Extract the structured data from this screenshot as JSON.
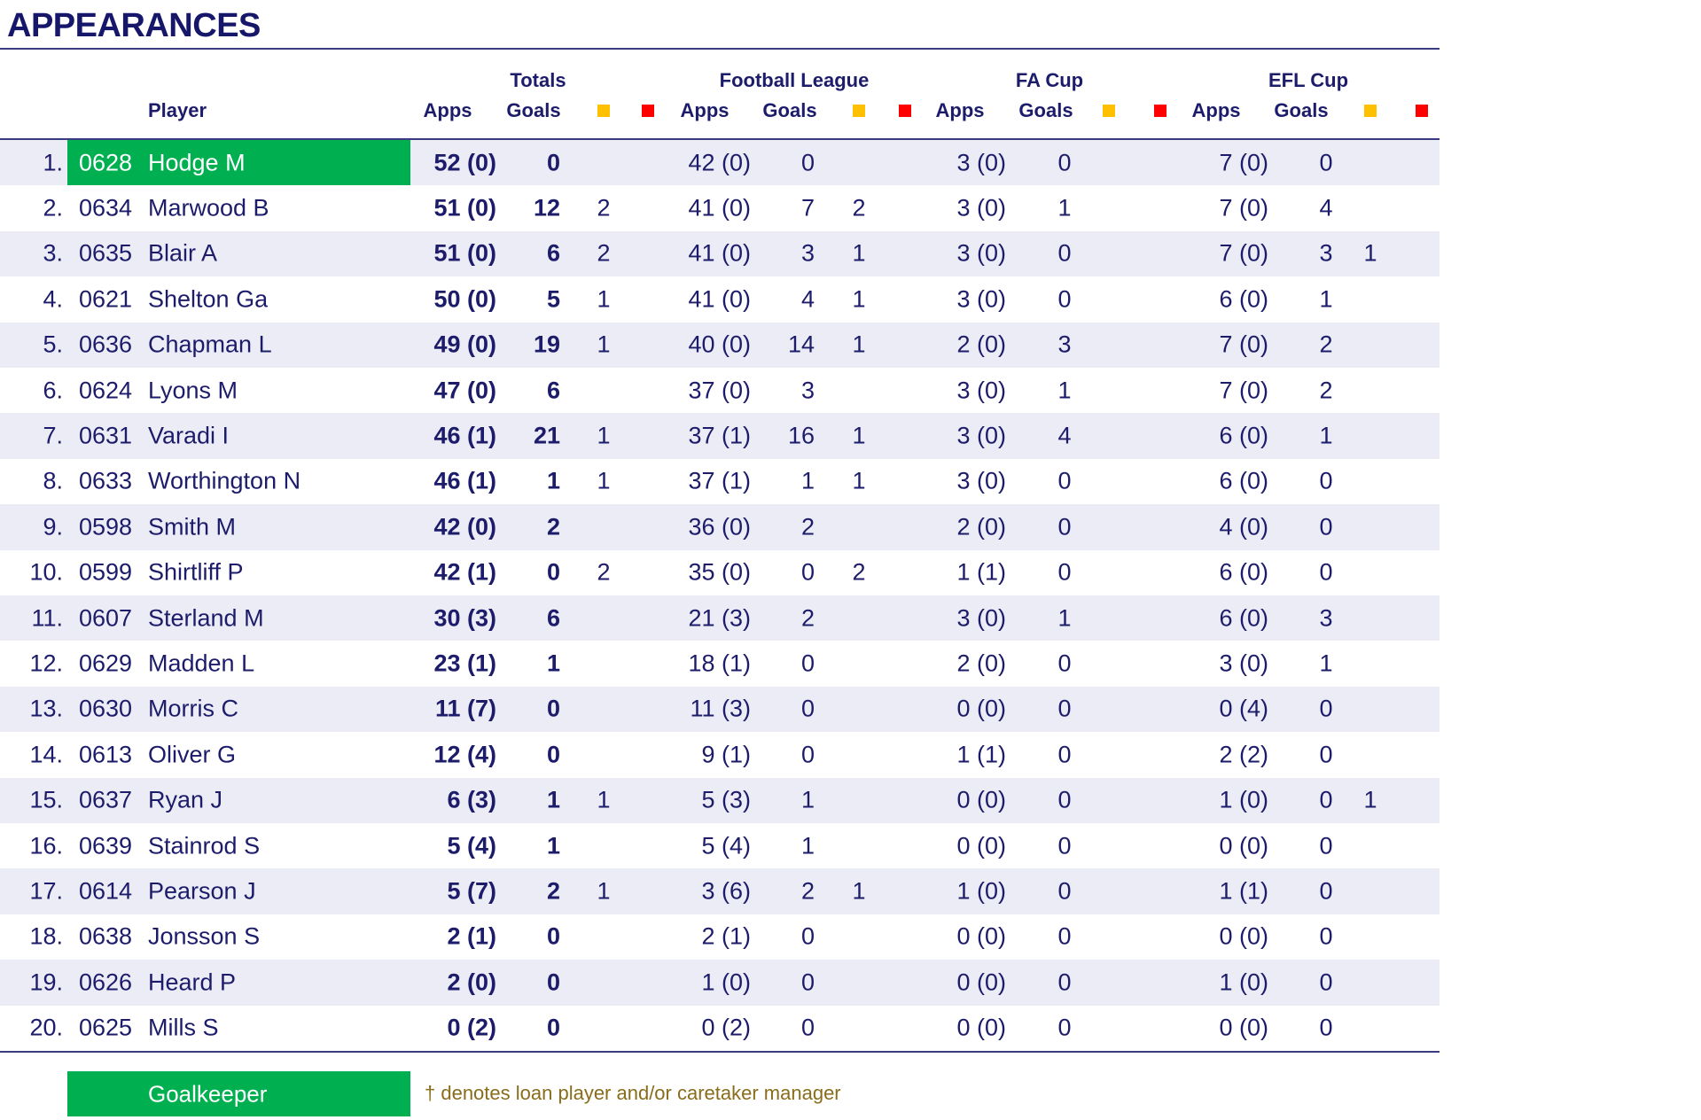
{
  "title": "APPEARANCES",
  "colors": {
    "goalkeeper": "#00b050",
    "yellow_card": "#ffc000",
    "red_card": "#ff0000",
    "text": "#1c1c6b",
    "stripe": "#ececf6"
  },
  "header": {
    "player": "Player",
    "groups": [
      "Totals",
      "Football League",
      "FA Cup",
      "EFL Cup"
    ],
    "apps": "Apps",
    "goals": "Goals",
    "yellow_icon": "yellow-card-icon",
    "red_icon": "red-card-icon"
  },
  "rows": [
    {
      "rank": "1.",
      "num": "0628",
      "name": "Hodge M",
      "gk": true,
      "tot": [
        "52 (0)",
        "0",
        "",
        ""
      ],
      "fl": [
        "42 (0)",
        "0",
        "",
        ""
      ],
      "fa": [
        "3 (0)",
        "0",
        "",
        ""
      ],
      "efl": [
        "7 (0)",
        "0",
        "",
        ""
      ]
    },
    {
      "rank": "2.",
      "num": "0634",
      "name": "Marwood B",
      "gk": false,
      "tot": [
        "51 (0)",
        "12",
        "2",
        ""
      ],
      "fl": [
        "41 (0)",
        "7",
        "2",
        ""
      ],
      "fa": [
        "3 (0)",
        "1",
        "",
        ""
      ],
      "efl": [
        "7 (0)",
        "4",
        "",
        ""
      ]
    },
    {
      "rank": "3.",
      "num": "0635",
      "name": "Blair A",
      "gk": false,
      "tot": [
        "51 (0)",
        "6",
        "2",
        ""
      ],
      "fl": [
        "41 (0)",
        "3",
        "1",
        ""
      ],
      "fa": [
        "3 (0)",
        "0",
        "",
        ""
      ],
      "efl": [
        "7 (0)",
        "3",
        "1",
        ""
      ]
    },
    {
      "rank": "4.",
      "num": "0621",
      "name": "Shelton Ga",
      "gk": false,
      "tot": [
        "50 (0)",
        "5",
        "1",
        ""
      ],
      "fl": [
        "41 (0)",
        "4",
        "1",
        ""
      ],
      "fa": [
        "3 (0)",
        "0",
        "",
        ""
      ],
      "efl": [
        "6 (0)",
        "1",
        "",
        ""
      ]
    },
    {
      "rank": "5.",
      "num": "0636",
      "name": "Chapman L",
      "gk": false,
      "tot": [
        "49 (0)",
        "19",
        "1",
        ""
      ],
      "fl": [
        "40 (0)",
        "14",
        "1",
        ""
      ],
      "fa": [
        "2 (0)",
        "3",
        "",
        ""
      ],
      "efl": [
        "7 (0)",
        "2",
        "",
        ""
      ]
    },
    {
      "rank": "6.",
      "num": "0624",
      "name": "Lyons M",
      "gk": false,
      "tot": [
        "47 (0)",
        "6",
        "",
        ""
      ],
      "fl": [
        "37 (0)",
        "3",
        "",
        ""
      ],
      "fa": [
        "3 (0)",
        "1",
        "",
        ""
      ],
      "efl": [
        "7 (0)",
        "2",
        "",
        ""
      ]
    },
    {
      "rank": "7.",
      "num": "0631",
      "name": "Varadi I",
      "gk": false,
      "tot": [
        "46 (1)",
        "21",
        "1",
        ""
      ],
      "fl": [
        "37 (1)",
        "16",
        "1",
        ""
      ],
      "fa": [
        "3 (0)",
        "4",
        "",
        ""
      ],
      "efl": [
        "6 (0)",
        "1",
        "",
        ""
      ]
    },
    {
      "rank": "8.",
      "num": "0633",
      "name": "Worthington N",
      "gk": false,
      "tot": [
        "46 (1)",
        "1",
        "1",
        ""
      ],
      "fl": [
        "37 (1)",
        "1",
        "1",
        ""
      ],
      "fa": [
        "3 (0)",
        "0",
        "",
        ""
      ],
      "efl": [
        "6 (0)",
        "0",
        "",
        ""
      ]
    },
    {
      "rank": "9.",
      "num": "0598",
      "name": "Smith M",
      "gk": false,
      "tot": [
        "42 (0)",
        "2",
        "",
        ""
      ],
      "fl": [
        "36 (0)",
        "2",
        "",
        ""
      ],
      "fa": [
        "2 (0)",
        "0",
        "",
        ""
      ],
      "efl": [
        "4 (0)",
        "0",
        "",
        ""
      ]
    },
    {
      "rank": "10.",
      "num": "0599",
      "name": "Shirtliff P",
      "gk": false,
      "tot": [
        "42 (1)",
        "0",
        "2",
        ""
      ],
      "fl": [
        "35 (0)",
        "0",
        "2",
        ""
      ],
      "fa": [
        "1 (1)",
        "0",
        "",
        ""
      ],
      "efl": [
        "6 (0)",
        "0",
        "",
        ""
      ]
    },
    {
      "rank": "11.",
      "num": "0607",
      "name": "Sterland M",
      "gk": false,
      "tot": [
        "30 (3)",
        "6",
        "",
        ""
      ],
      "fl": [
        "21 (3)",
        "2",
        "",
        ""
      ],
      "fa": [
        "3 (0)",
        "1",
        "",
        ""
      ],
      "efl": [
        "6 (0)",
        "3",
        "",
        ""
      ]
    },
    {
      "rank": "12.",
      "num": "0629",
      "name": "Madden L",
      "gk": false,
      "tot": [
        "23 (1)",
        "1",
        "",
        ""
      ],
      "fl": [
        "18 (1)",
        "0",
        "",
        ""
      ],
      "fa": [
        "2 (0)",
        "0",
        "",
        ""
      ],
      "efl": [
        "3 (0)",
        "1",
        "",
        ""
      ]
    },
    {
      "rank": "13.",
      "num": "0630",
      "name": "Morris C",
      "gk": false,
      "tot": [
        "11 (7)",
        "0",
        "",
        ""
      ],
      "fl": [
        "11 (3)",
        "0",
        "",
        ""
      ],
      "fa": [
        "0 (0)",
        "0",
        "",
        ""
      ],
      "efl": [
        "0 (4)",
        "0",
        "",
        ""
      ]
    },
    {
      "rank": "14.",
      "num": "0613",
      "name": "Oliver G",
      "gk": false,
      "tot": [
        "12 (4)",
        "0",
        "",
        ""
      ],
      "fl": [
        "9 (1)",
        "0",
        "",
        ""
      ],
      "fa": [
        "1 (1)",
        "0",
        "",
        ""
      ],
      "efl": [
        "2 (2)",
        "0",
        "",
        ""
      ]
    },
    {
      "rank": "15.",
      "num": "0637",
      "name": "Ryan J",
      "gk": false,
      "tot": [
        "6 (3)",
        "1",
        "1",
        ""
      ],
      "fl": [
        "5 (3)",
        "1",
        "",
        ""
      ],
      "fa": [
        "0 (0)",
        "0",
        "",
        ""
      ],
      "efl": [
        "1 (0)",
        "0",
        "1",
        ""
      ]
    },
    {
      "rank": "16.",
      "num": "0639",
      "name": "Stainrod S",
      "gk": false,
      "tot": [
        "5 (4)",
        "1",
        "",
        ""
      ],
      "fl": [
        "5 (4)",
        "1",
        "",
        ""
      ],
      "fa": [
        "0 (0)",
        "0",
        "",
        ""
      ],
      "efl": [
        "0 (0)",
        "0",
        "",
        ""
      ]
    },
    {
      "rank": "17.",
      "num": "0614",
      "name": "Pearson J",
      "gk": false,
      "tot": [
        "5 (7)",
        "2",
        "1",
        ""
      ],
      "fl": [
        "3 (6)",
        "2",
        "1",
        ""
      ],
      "fa": [
        "1 (0)",
        "0",
        "",
        ""
      ],
      "efl": [
        "1 (1)",
        "0",
        "",
        ""
      ]
    },
    {
      "rank": "18.",
      "num": "0638",
      "name": "Jonsson S",
      "gk": false,
      "tot": [
        "2 (1)",
        "0",
        "",
        ""
      ],
      "fl": [
        "2 (1)",
        "0",
        "",
        ""
      ],
      "fa": [
        "0 (0)",
        "0",
        "",
        ""
      ],
      "efl": [
        "0 (0)",
        "0",
        "",
        ""
      ]
    },
    {
      "rank": "19.",
      "num": "0626",
      "name": "Heard P",
      "gk": false,
      "tot": [
        "2 (0)",
        "0",
        "",
        ""
      ],
      "fl": [
        "1 (0)",
        "0",
        "",
        ""
      ],
      "fa": [
        "0 (0)",
        "0",
        "",
        ""
      ],
      "efl": [
        "1 (0)",
        "0",
        "",
        ""
      ]
    },
    {
      "rank": "20.",
      "num": "0625",
      "name": "Mills S",
      "gk": false,
      "tot": [
        "0 (2)",
        "0",
        "",
        ""
      ],
      "fl": [
        "0 (2)",
        "0",
        "",
        ""
      ],
      "fa": [
        "0 (0)",
        "0",
        "",
        ""
      ],
      "efl": [
        "0 (0)",
        "0",
        "",
        ""
      ]
    }
  ],
  "legend": {
    "goalkeeper": "Goalkeeper",
    "footnote": "† denotes loan player and/or caretaker manager"
  }
}
